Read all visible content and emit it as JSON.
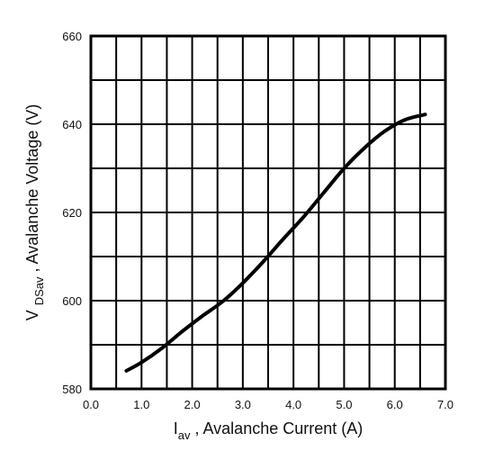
{
  "chart_data": {
    "type": "line",
    "xlabel": {
      "main": "I",
      "sub": "av",
      "rest": " , Avalanche Current  (A)"
    },
    "ylabel": {
      "main": "V ",
      "sub": "DSav",
      "rest": " , Avalanche Voltage (V)"
    },
    "xlim": [
      0,
      7
    ],
    "ylim": [
      580,
      660
    ],
    "x_ticks": [
      0,
      0.5,
      1,
      1.5,
      2,
      2.5,
      3,
      3.5,
      4,
      4.5,
      5,
      5.5,
      6,
      6.5,
      7
    ],
    "y_ticks": [
      580,
      590,
      600,
      610,
      620,
      630,
      640,
      650,
      660
    ],
    "x_tick_labels": [
      {
        "value": 0,
        "label": "0.0"
      },
      {
        "value": 1,
        "label": "1.0"
      },
      {
        "value": 2,
        "label": "2.0"
      },
      {
        "value": 3,
        "label": "3.0"
      },
      {
        "value": 4,
        "label": "4.0"
      },
      {
        "value": 5,
        "label": "5.0"
      },
      {
        "value": 6,
        "label": "6.0"
      },
      {
        "value": 7,
        "label": "7.0"
      }
    ],
    "y_tick_labels": [
      {
        "value": 580,
        "label": "580"
      },
      {
        "value": 600,
        "label": "600"
      },
      {
        "value": 620,
        "label": "620"
      },
      {
        "value": 640,
        "label": "640"
      },
      {
        "value": 660,
        "label": "660"
      }
    ],
    "grid": true,
    "series": [
      {
        "color": "#000000",
        "x": [
          0.7,
          1.0,
          1.4,
          1.8,
          2.2,
          2.6,
          3.0,
          3.4,
          3.8,
          4.2,
          4.6,
          5.0,
          5.4,
          5.8,
          6.2,
          6.6
        ],
        "y": [
          584.1,
          586.0,
          589.2,
          593.0,
          596.5,
          599.8,
          604.0,
          608.8,
          614.0,
          619.0,
          624.5,
          630.0,
          634.6,
          638.4,
          641.0,
          642.2
        ]
      }
    ]
  }
}
